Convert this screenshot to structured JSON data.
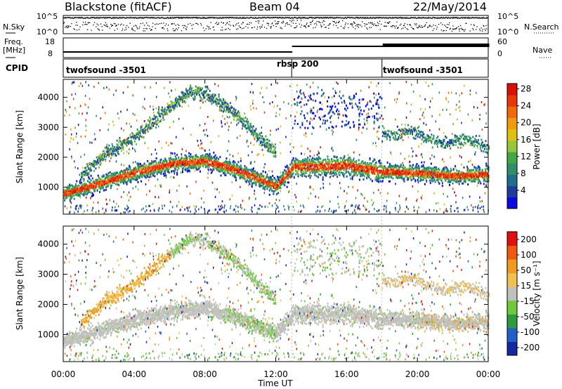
{
  "header": {
    "station": "Blackstone (fitACF)",
    "beam": "Beam 04",
    "date": "22/May/2014"
  },
  "sky_panel": {
    "left_label": "N.Sky",
    "right_label": "N.Search",
    "left_ticks": [
      "10^5",
      "10^0"
    ],
    "right_ticks": [
      "10^5",
      "10^0"
    ]
  },
  "freq_panel": {
    "left_label_1": "Freq.",
    "left_label_2": "[MHz]",
    "right_label": "Nave",
    "left_ticks": [
      "18",
      "8"
    ],
    "right_ticks": [
      "60",
      "0"
    ]
  },
  "cpid_panel": {
    "label": "CPID",
    "segments": [
      {
        "name": "twofsound -3501",
        "start_hour": 0,
        "end_hour": 12.9
      },
      {
        "name": "rbsp 200",
        "start_hour": 12.9,
        "end_hour": 18
      },
      {
        "name": "twofsound -3501",
        "start_hour": 18,
        "end_hour": 24
      }
    ]
  },
  "chart_data": [
    {
      "type": "heatmap",
      "title": "Power",
      "xlabel": "",
      "ylabel": "Slant Range [km]",
      "xlim": [
        0,
        24
      ],
      "ylim": [
        100,
        4600
      ],
      "yticks": [
        1000,
        2000,
        3000,
        4000
      ],
      "colorbar_label": "Power [dB]",
      "colorbar_ticks": [
        4,
        8,
        12,
        16,
        20,
        24,
        28
      ],
      "colorbar_colors": [
        "#0a0ae0",
        "#1e3c9a",
        "#1e6e8c",
        "#2f8f6a",
        "#43a843",
        "#98c63a",
        "#e0c010",
        "#f09a10",
        "#f06a0c",
        "#e8380a",
        "#d81008"
      ],
      "echo_bands": [
        {
          "desc": "ground scatter",
          "points": [
            [
              0,
              800
            ],
            [
              2,
              1150
            ],
            [
              4,
              1500
            ],
            [
              6,
              1800
            ],
            [
              8,
              1900
            ],
            [
              10,
              1550
            ],
            [
              12,
              1050
            ],
            [
              13,
              1700
            ],
            [
              16,
              1750
            ],
            [
              18,
              1550
            ],
            [
              20,
              1500
            ],
            [
              22,
              1400
            ],
            [
              24,
              1450
            ]
          ]
        },
        {
          "desc": "upper echo",
          "points": [
            [
              1,
              1400
            ],
            [
              2,
              2000
            ],
            [
              4,
              2700
            ],
            [
              6,
              3700
            ],
            [
              7,
              4200
            ],
            [
              8,
              4200
            ],
            [
              10,
              3300
            ],
            [
              11,
              2700
            ],
            [
              12,
              2200
            ]
          ]
        }
      ]
    },
    {
      "type": "heatmap",
      "title": "Velocity",
      "xlabel": "Time UT",
      "ylabel": "Slant Range [km]",
      "xlim": [
        0,
        24
      ],
      "ylim": [
        100,
        4600
      ],
      "xticks": [
        "00:00",
        "04:00",
        "08:00",
        "12:00",
        "16:00",
        "20:00",
        "00:00"
      ],
      "yticks": [
        1000,
        2000,
        3000,
        4000
      ],
      "colorbar_label": "Velocity [m s⁻¹]",
      "colorbar_ticks": [
        "200",
        "100",
        "50",
        "15",
        "-15",
        "-50",
        "-100",
        "-200"
      ],
      "colorbar_colors": [
        "#1428a0",
        "#2060c8",
        "#2e9a40",
        "#70c83c",
        "#c0c0bc",
        "#f0c050",
        "#f09a20",
        "#f05a10",
        "#e01010"
      ]
    }
  ]
}
